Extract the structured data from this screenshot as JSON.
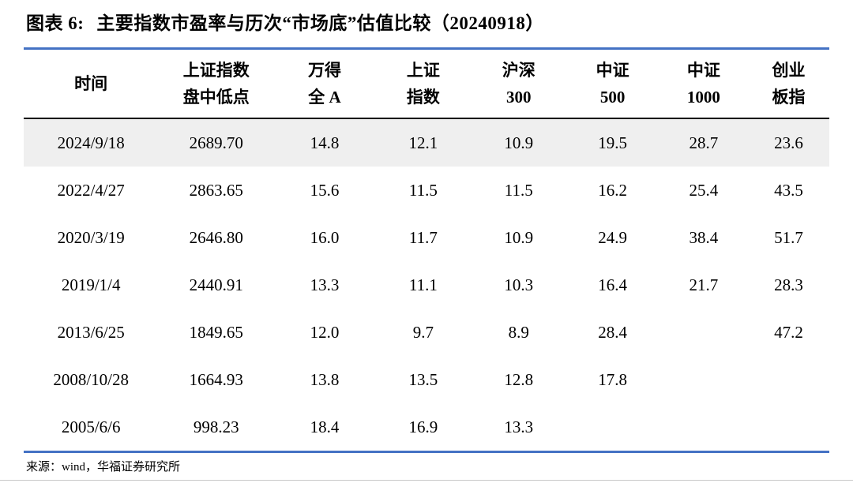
{
  "title": {
    "label": "图表 6:",
    "text": "主要指数市盈率与历次“市场底”估值比较（20240918）"
  },
  "table": {
    "columns": [
      {
        "line1": "时间",
        "line2": ""
      },
      {
        "line1": "上证指数",
        "line2": "盘中低点"
      },
      {
        "line1": "万得",
        "line2": "全 A"
      },
      {
        "line1": "上证",
        "line2": "指数"
      },
      {
        "line1": "沪深",
        "line2": "300"
      },
      {
        "line1": "中证",
        "line2": "500"
      },
      {
        "line1": "中证",
        "line2": "1000"
      },
      {
        "line1": "创业",
        "line2": "板指"
      }
    ],
    "col_widths_pct": [
      16.7,
      14.4,
      12.5,
      12.0,
      11.7,
      11.6,
      11.0,
      10.1
    ],
    "rows": [
      [
        "2024/9/18",
        "2689.70",
        "14.8",
        "12.1",
        "10.9",
        "19.5",
        "28.7",
        "23.6"
      ],
      [
        "2022/4/27",
        "2863.65",
        "15.6",
        "11.5",
        "11.5",
        "16.2",
        "25.4",
        "43.5"
      ],
      [
        "2020/3/19",
        "2646.80",
        "16.0",
        "11.7",
        "10.9",
        "24.9",
        "38.4",
        "51.7"
      ],
      [
        "2019/1/4",
        "2440.91",
        "13.3",
        "11.1",
        "10.3",
        "16.4",
        "21.7",
        "28.3"
      ],
      [
        "2013/6/25",
        "1849.65",
        "12.0",
        "9.7",
        "8.9",
        "28.4",
        "",
        "47.2"
      ],
      [
        "2008/10/28",
        "1664.93",
        "13.8",
        "13.5",
        "12.8",
        "17.8",
        "",
        ""
      ],
      [
        "2005/6/6",
        "998.23",
        "18.4",
        "16.9",
        "13.3",
        "",
        "",
        ""
      ]
    ],
    "highlighted_row_index": 0
  },
  "source": "来源：wind，华福证券研究所",
  "colors": {
    "accent_blue": "#4472C4",
    "highlight_gray": "#efefef",
    "text": "#000000"
  }
}
